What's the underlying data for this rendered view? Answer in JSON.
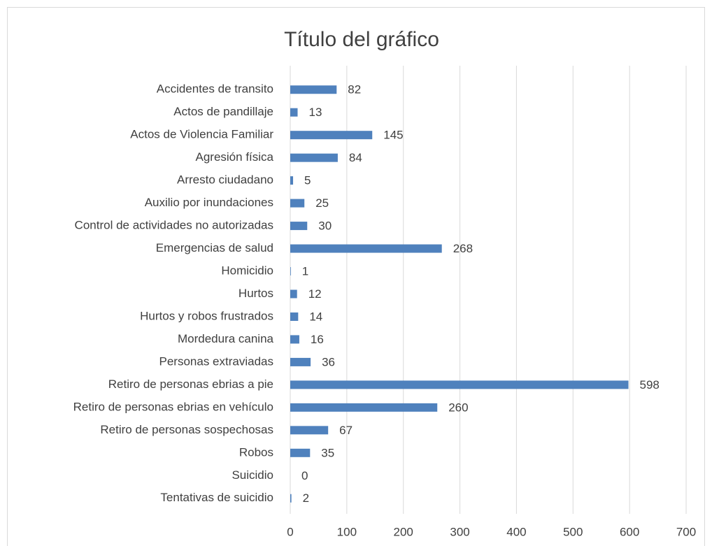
{
  "chart_data": {
    "type": "bar",
    "orientation": "horizontal",
    "title": "Título del gráfico",
    "categories": [
      "Accidentes de transito",
      "Actos de pandillaje",
      "Actos de Violencia Familiar",
      "Agresión física",
      "Arresto ciudadano",
      "Auxilio por inundaciones",
      "Control de actividades no autorizadas",
      "Emergencias de salud",
      "Homicidio",
      "Hurtos",
      "Hurtos y robos frustrados",
      "Mordedura canina",
      "Personas extraviadas",
      "Retiro de personas ebrias a pie",
      "Retiro de personas ebrias en vehículo",
      "Retiro de personas sospechosas",
      "Robos",
      "Suicidio",
      "Tentativas de suicidio"
    ],
    "values": [
      82,
      13,
      145,
      84,
      5,
      25,
      30,
      268,
      1,
      12,
      14,
      16,
      36,
      598,
      260,
      67,
      35,
      0,
      2
    ],
    "color": "#4f81bd",
    "xlim": [
      0,
      700
    ],
    "xticks": [
      0,
      100,
      200,
      300,
      400,
      500,
      600,
      700
    ],
    "grid": true,
    "data_labels": true
  }
}
